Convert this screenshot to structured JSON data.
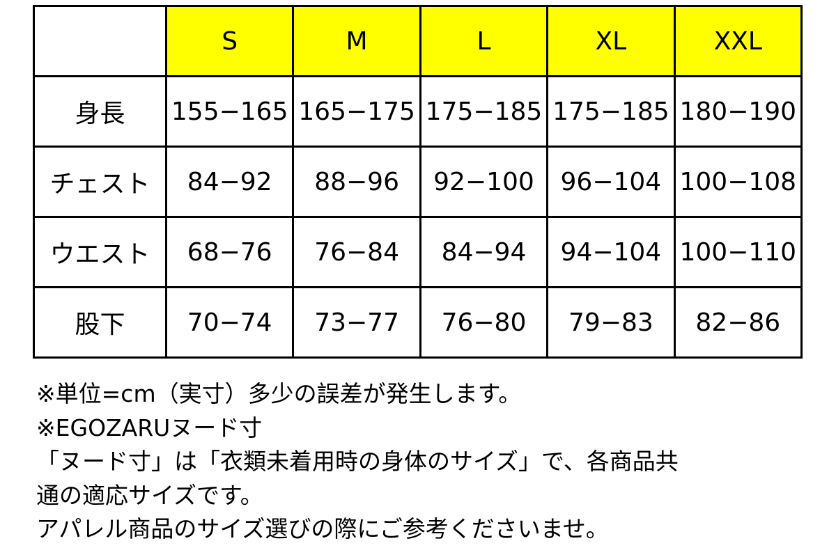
{
  "table": {
    "header": [
      "S",
      "M",
      "L",
      "XL",
      "XXL"
    ],
    "rows": [
      [
        "身長",
        "155−165",
        "165−175",
        "175−185",
        "175−185",
        "180−190"
      ],
      [
        "チェスト",
        "84−92",
        "88−96",
        "92−100",
        "96−104",
        "100−108"
      ],
      [
        "ウエスト",
        "68−76",
        "76−84",
        "84−94",
        "94−104",
        "100−110"
      ],
      [
        "股下",
        "70−74",
        "73−77",
        "76−80",
        "79−83",
        "82−86"
      ]
    ]
  },
  "notes": [
    "※単位=cm（実寸）多少の誤差が発生します。",
    "※EGOZARUヌード寸",
    "「ヌード寸」は「衣類未着用時の身体のサイズ」で、各商品共",
    "通の適応サイズです。",
    "アパレル商品のサイズ選びの際にご参考くださいませ。"
  ]
}
